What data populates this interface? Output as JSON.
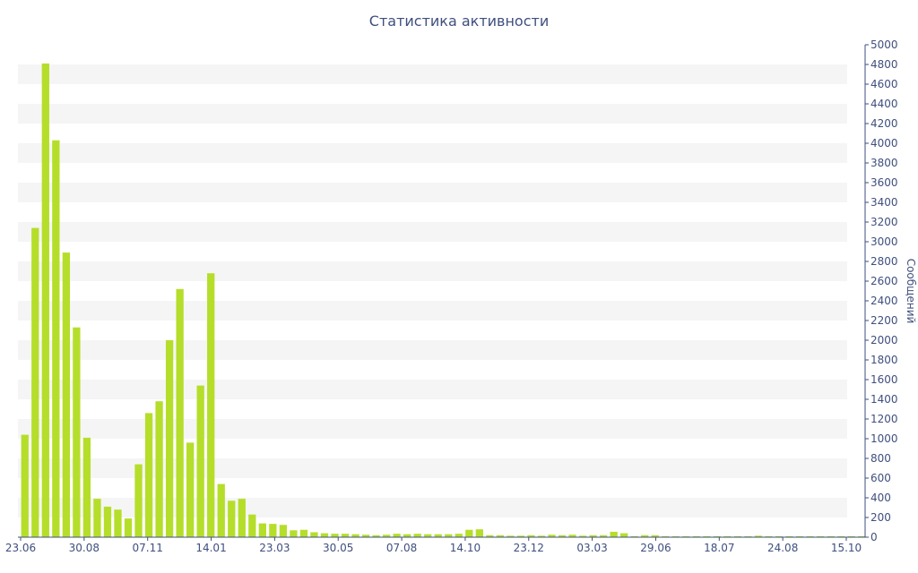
{
  "chart_data": {
    "type": "bar",
    "title": "Статистика активности",
    "ylabel": "Сообщений",
    "ylim": [
      0,
      5000
    ],
    "yticks": [
      0,
      200,
      400,
      600,
      800,
      1000,
      1200,
      1400,
      1600,
      1800,
      2000,
      2200,
      2400,
      2600,
      2800,
      3000,
      3200,
      3400,
      3600,
      3800,
      4000,
      4200,
      4400,
      4600,
      4800,
      5000
    ],
    "xtick_labels": [
      "23.06",
      "30.08",
      "07.11",
      "14.01",
      "23.03",
      "30.05",
      "07.08",
      "14.10",
      "23.12",
      "03.03",
      "29.06",
      "18.07",
      "24.08",
      "15.10"
    ],
    "bar_color": "#b5de2b",
    "band_color": "#f5f5f5",
    "values": [
      1040,
      3140,
      4810,
      4030,
      2890,
      2130,
      1010,
      390,
      310,
      280,
      190,
      740,
      1260,
      1380,
      2000,
      2520,
      960,
      1540,
      2680,
      540,
      370,
      390,
      230,
      140,
      135,
      125,
      70,
      75,
      50,
      40,
      35,
      35,
      30,
      25,
      20,
      25,
      35,
      30,
      35,
      30,
      30,
      30,
      35,
      75,
      80,
      20,
      20,
      15,
      15,
      20,
      15,
      25,
      20,
      25,
      15,
      20,
      20,
      55,
      40,
      10,
      20,
      20,
      10,
      10,
      10,
      10,
      10,
      10,
      10,
      10,
      10,
      15,
      10,
      10,
      10,
      10,
      10,
      10,
      10,
      10,
      10,
      10
    ]
  }
}
